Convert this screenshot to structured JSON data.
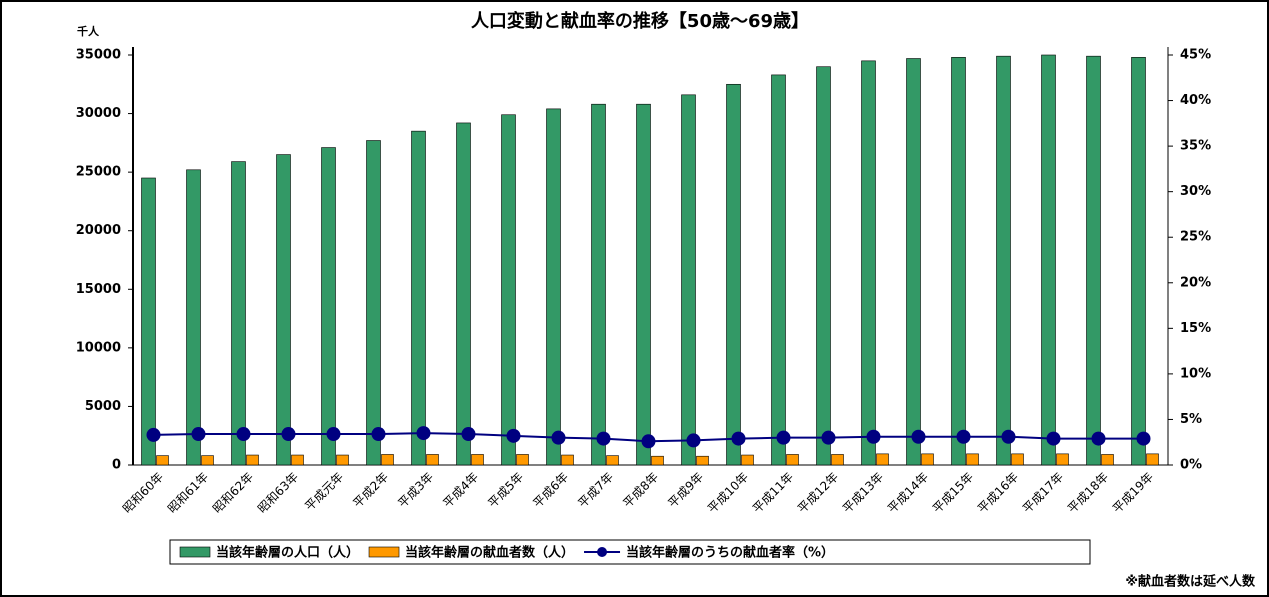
{
  "chart_data": {
    "type": "bar",
    "title": "人口変動と献血率の推移【50歳～69歳】",
    "y_axis_label": "千人",
    "footnote": "※献血者数は延べ人数",
    "categories": [
      "昭和60年",
      "昭和61年",
      "昭和62年",
      "昭和63年",
      "平成元年",
      "平成2年",
      "平成3年",
      "平成4年",
      "平成5年",
      "平成6年",
      "平成7年",
      "平成8年",
      "平成9年",
      "平成10年",
      "平成11年",
      "平成12年",
      "平成13年",
      "平成14年",
      "平成15年",
      "平成16年",
      "平成17年",
      "平成18年",
      "平成19年"
    ],
    "series": [
      {
        "name": "当該年齢層の人口（人）",
        "color": "#339966",
        "type": "bar",
        "values": [
          24500,
          25200,
          25900,
          26500,
          27100,
          27700,
          28500,
          29200,
          29900,
          30400,
          30800,
          30800,
          31600,
          32500,
          33300,
          34000,
          34500,
          34700,
          34800,
          34900,
          35000,
          34900,
          34800
        ]
      },
      {
        "name": "当該年齢層の献血者数（人）",
        "color": "#ff9900",
        "type": "bar",
        "values": [
          800,
          800,
          850,
          850,
          850,
          900,
          900,
          900,
          900,
          850,
          800,
          750,
          750,
          850,
          900,
          900,
          950,
          950,
          950,
          950,
          950,
          900,
          950
        ]
      },
      {
        "name": "当該年齢層のうちの献血者率（%）",
        "color": "#000080",
        "type": "line",
        "axis": "y2",
        "values": [
          3.3,
          3.4,
          3.4,
          3.4,
          3.4,
          3.4,
          3.5,
          3.4,
          3.2,
          3.0,
          2.9,
          2.6,
          2.7,
          2.9,
          3.0,
          3.0,
          3.1,
          3.1,
          3.1,
          3.1,
          2.9,
          2.9,
          2.9
        ]
      }
    ],
    "ylim": [
      0,
      35000
    ],
    "yticks": [
      0,
      5000,
      10000,
      15000,
      20000,
      25000,
      30000,
      35000
    ],
    "y2lim": [
      0,
      45
    ],
    "y2ticks": [
      {
        "value": 0,
        "label": "0%"
      },
      {
        "value": 5,
        "label": "5%"
      },
      {
        "value": 10,
        "label": "10%"
      },
      {
        "value": 15,
        "label": "15%"
      },
      {
        "value": 20,
        "label": "20%"
      },
      {
        "value": 25,
        "label": "25%"
      },
      {
        "value": 30,
        "label": "30%"
      },
      {
        "value": 35,
        "label": "35%"
      },
      {
        "value": 40,
        "label": "40%"
      },
      {
        "value": 45,
        "label": "45%"
      }
    ],
    "grid": false,
    "legend": "bottom"
  }
}
